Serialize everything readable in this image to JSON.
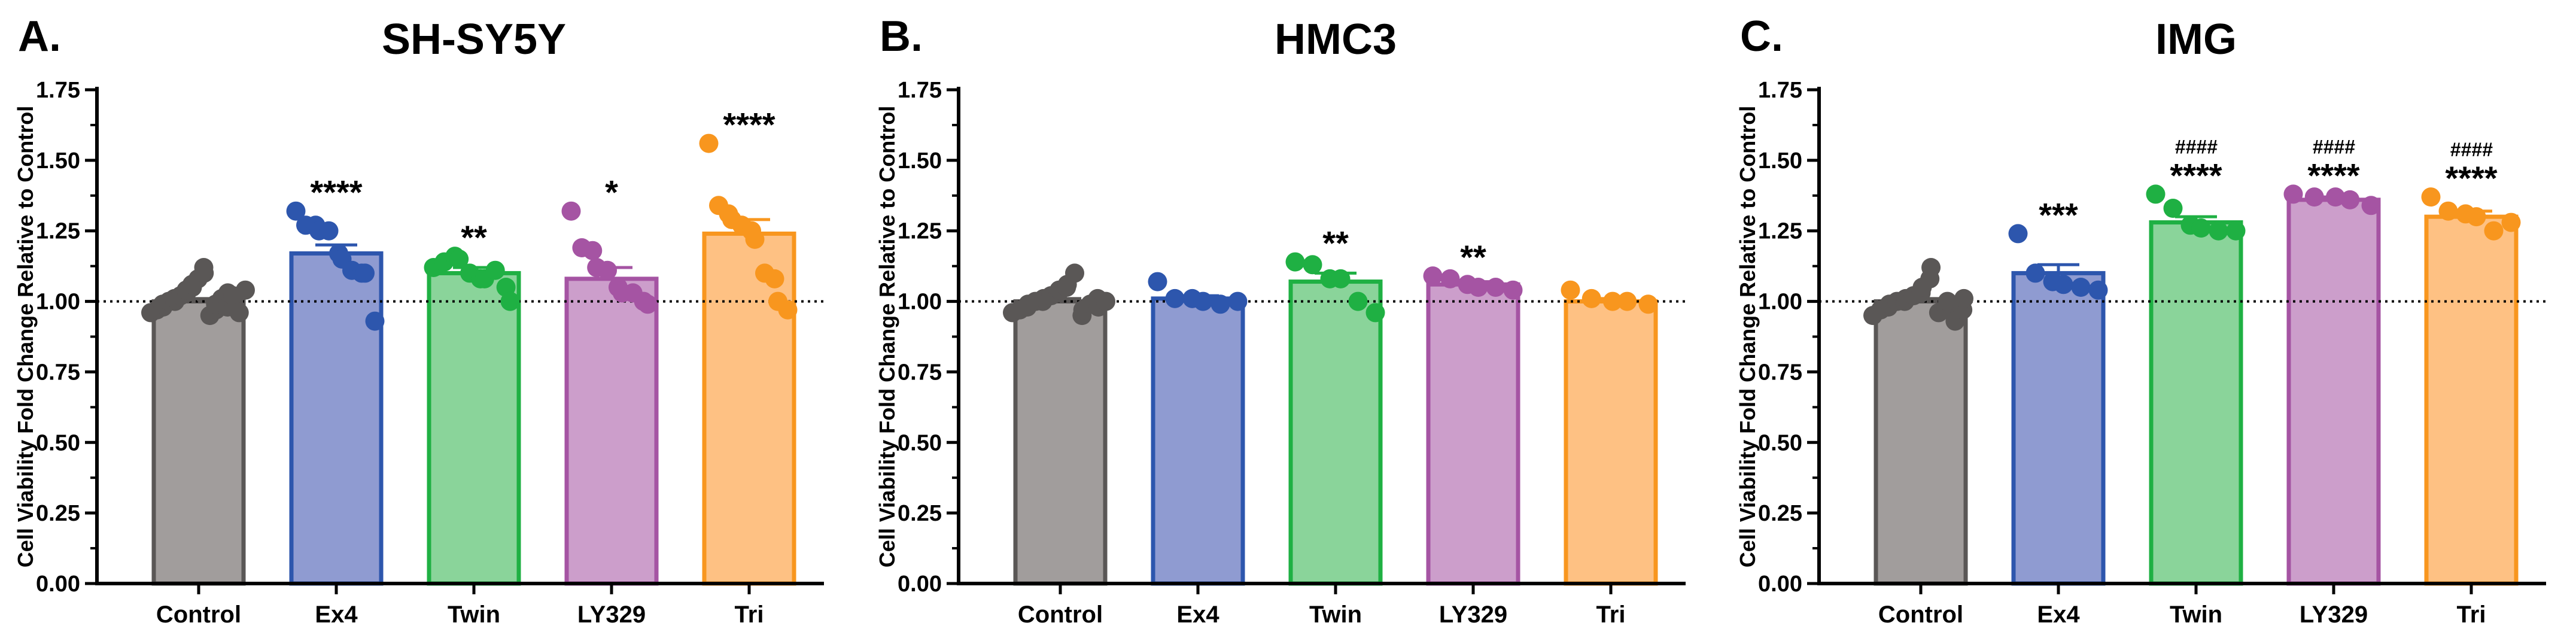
{
  "chart_data": [
    {
      "panel": "A.",
      "title": "SH-SY5Y",
      "type": "bar",
      "ylabel": "Cell Viability Fold Change Relative to Control",
      "ylim": [
        0,
        1.75
      ],
      "yticks": [
        "0.00",
        "0.25",
        "0.50",
        "0.75",
        "1.00",
        "1.25",
        "1.50",
        "1.75"
      ],
      "reference_line": 1.0,
      "categories": [
        "Control",
        "Ex4",
        "Twin",
        "LY329",
        "Tri"
      ],
      "values": [
        1.0,
        1.17,
        1.1,
        1.08,
        1.24
      ],
      "errors": [
        0.01,
        0.03,
        0.02,
        0.04,
        0.05
      ],
      "significance": [
        "",
        "****",
        "**",
        "*",
        "****"
      ],
      "significance2": [
        "",
        "",
        "",
        "",
        ""
      ],
      "points": [
        [
          0.96,
          0.97,
          0.98,
          0.99,
          1.0,
          1.0,
          1.01,
          1.02,
          1.03,
          1.04,
          1.05,
          1.06,
          1.08,
          1.1,
          1.12,
          0.95,
          0.97,
          0.99,
          1.01,
          1.03,
          0.98,
          1.0,
          1.02,
          0.96,
          1.04
        ],
        [
          1.32,
          1.27,
          1.27,
          1.25,
          1.25,
          1.17,
          1.15,
          1.11,
          1.1,
          1.1,
          0.93
        ],
        [
          1.12,
          1.14,
          1.16,
          1.15,
          1.1,
          1.08,
          1.08,
          1.11,
          1.05,
          1.0
        ],
        [
          1.32,
          1.19,
          1.18,
          1.12,
          1.11,
          1.05,
          1.03,
          1.03,
          1.0,
          0.99
        ],
        [
          1.56,
          1.34,
          1.31,
          1.29,
          1.27,
          1.25,
          1.22,
          1.1,
          1.08,
          1.0,
          0.97
        ]
      ]
    },
    {
      "panel": "B.",
      "title": "HMC3",
      "type": "bar",
      "ylabel": "Cell Viability Fold Change Relative to Control",
      "ylim": [
        0,
        1.75
      ],
      "yticks": [
        "0.00",
        "0.25",
        "0.50",
        "0.75",
        "1.00",
        "1.25",
        "1.50",
        "1.75"
      ],
      "reference_line": 1.0,
      "categories": [
        "Control",
        "Ex4",
        "Twin",
        "LY329",
        "Tri"
      ],
      "values": [
        1.0,
        1.01,
        1.07,
        1.06,
        1.0
      ],
      "errors": [
        0.01,
        0.01,
        0.03,
        0.01,
        0.01
      ],
      "significance": [
        "",
        "",
        "**",
        "**",
        ""
      ],
      "significance2": [
        "",
        "",
        "",
        "",
        ""
      ],
      "points": [
        [
          0.96,
          0.97,
          0.98,
          0.99,
          1.0,
          1.0,
          1.01,
          1.02,
          1.03,
          1.04,
          1.05,
          1.06,
          1.1,
          0.95,
          0.97,
          0.99,
          1.01,
          0.98,
          1.0
        ],
        [
          1.07,
          1.01,
          1.01,
          1.0,
          0.99,
          1.0
        ],
        [
          1.14,
          1.13,
          1.08,
          1.08,
          1.0,
          0.96
        ],
        [
          1.09,
          1.08,
          1.06,
          1.05,
          1.05,
          1.04
        ],
        [
          1.04,
          1.01,
          1.0,
          1.0,
          0.99
        ]
      ]
    },
    {
      "panel": "C.",
      "title": "IMG",
      "type": "bar",
      "ylabel": "Cell Viability Fold Change Relative to Control",
      "ylim": [
        0,
        1.75
      ],
      "yticks": [
        "0.00",
        "0.25",
        "0.50",
        "0.75",
        "1.00",
        "1.25",
        "1.50",
        "1.75"
      ],
      "reference_line": 1.0,
      "categories": [
        "Control",
        "Ex4",
        "Twin",
        "LY329",
        "Tri"
      ],
      "values": [
        1.0,
        1.1,
        1.28,
        1.36,
        1.3
      ],
      "errors": [
        0.01,
        0.03,
        0.02,
        0.01,
        0.02
      ],
      "significance": [
        "",
        "***",
        "****",
        "****",
        "****"
      ],
      "significance2": [
        "",
        "",
        "####",
        "####",
        "####"
      ],
      "points": [
        [
          0.95,
          0.97,
          0.98,
          0.99,
          1.0,
          1.0,
          1.01,
          1.02,
          1.03,
          1.05,
          1.08,
          1.12,
          0.96,
          0.98,
          1.0,
          0.93,
          0.97,
          1.01
        ],
        [
          1.24,
          1.1,
          1.07,
          1.06,
          1.05,
          1.04
        ],
        [
          1.38,
          1.33,
          1.27,
          1.26,
          1.25,
          1.25
        ],
        [
          1.38,
          1.37,
          1.37,
          1.36,
          1.34
        ],
        [
          1.37,
          1.32,
          1.31,
          1.3,
          1.25,
          1.28
        ]
      ]
    }
  ],
  "colors": {
    "fills": [
      "#a19d9c",
      "#8f9bd1",
      "#8ad49a",
      "#cc9ecb",
      "#fec183"
    ],
    "strokes": [
      "#5a5756",
      "#2d56ad",
      "#1fb043",
      "#a554a3",
      "#f8961e"
    ],
    "points": [
      "#5a5756",
      "#2d56ad",
      "#1fb043",
      "#a554a3",
      "#f8961e"
    ]
  }
}
